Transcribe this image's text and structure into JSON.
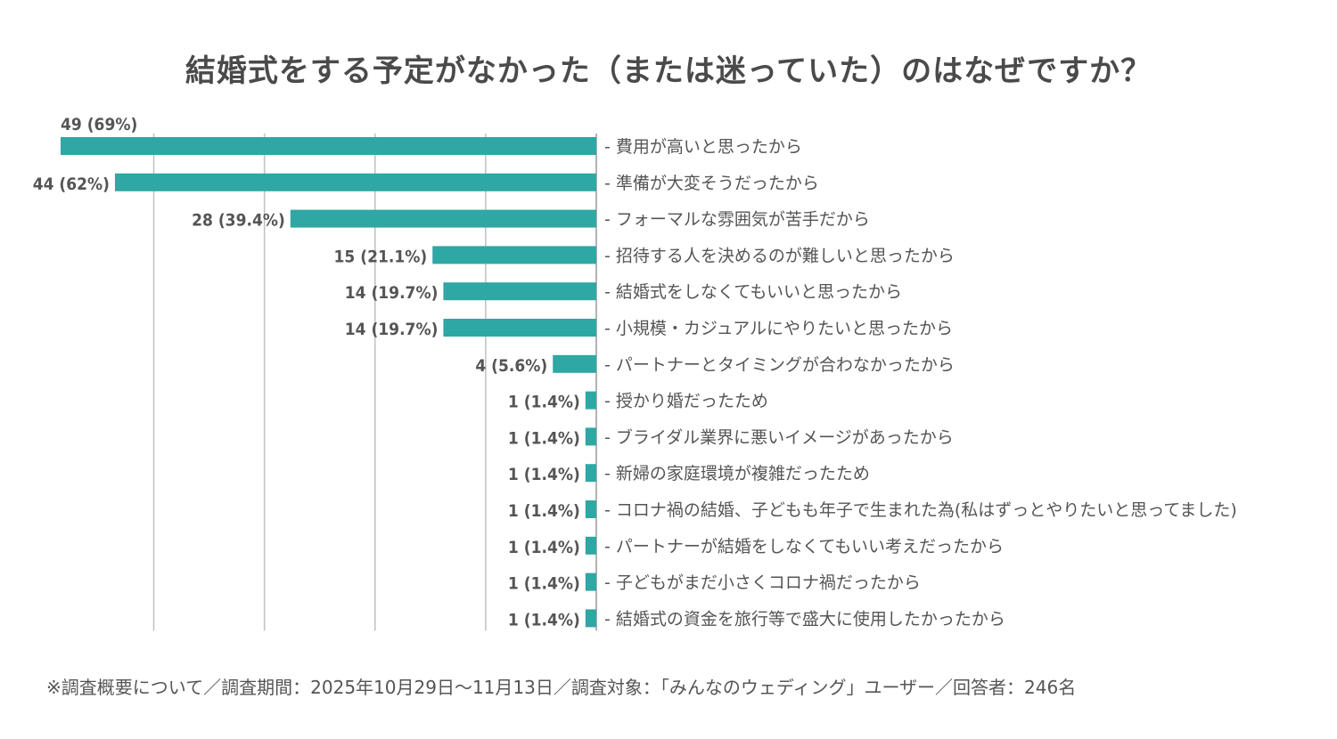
{
  "chart_data": {
    "type": "bar",
    "orientation": "horizontal",
    "title": "結婚式をする予定がなかった（または迷っていた）のはなぜですか？",
    "xlabel": "",
    "ylabel": "",
    "grid": true,
    "bar_color": "#2fa7a4",
    "grid_color": "#c0c0c0",
    "categories": [
      "- 費用が高いと思ったから",
      "- 準備が大変そうだったから",
      "- フォーマルな雰囲気が苦手だから",
      "- 招待する人を決めるのが難しいと思ったから",
      "- 結婚式をしなくてもいいと思ったから",
      "- 小規模・カジュアルにやりたいと思ったから",
      "- パートナーとタイミングが合わなかったから",
      "- 授かり婚だったため",
      "- ブライダル業界に悪いイメージがあったから",
      "- 新婦の家庭環境が複雑だったため",
      "- コロナ禍の結婚、子どもも年子で生まれた為(私はずっとやりたいと思ってました)",
      "- パートナーが結婚をしなくてもいい考えだったから",
      "- 子どもがまだ小さくコロナ禍だったから",
      "- 結婚式の資金を旅行等で盛大に使用したかったから"
    ],
    "counts": [
      49,
      44,
      28,
      15,
      14,
      14,
      4,
      1,
      1,
      1,
      1,
      1,
      1,
      1
    ],
    "percents": [
      69,
      62,
      39.4,
      21.1,
      19.7,
      19.7,
      5.6,
      1.4,
      1.4,
      1.4,
      1.4,
      1.4,
      1.4,
      1.4
    ],
    "value_labels": [
      "49 (69%)",
      "44 (62%)",
      "28 (39.4%)",
      "15 (21.1%)",
      "14 (19.7%)",
      "14 (19.7%)",
      "4 (5.6%)",
      "1 (1.4%)",
      "1 (1.4%)",
      "1 (1.4%)",
      "1 (1.4%)",
      "1 (1.4%)",
      "1 (1.4%)",
      "1 (1.4%)"
    ],
    "xlim": [
      0,
      69
    ],
    "gridlines_percent": [
      14.25,
      28.5,
      42.75,
      57
    ]
  },
  "footnote": "※調査概要について／調査期間：2025年10月29日〜11月13日／調査対象：「みんなのウェディング」ユーザー／回答者：246名"
}
